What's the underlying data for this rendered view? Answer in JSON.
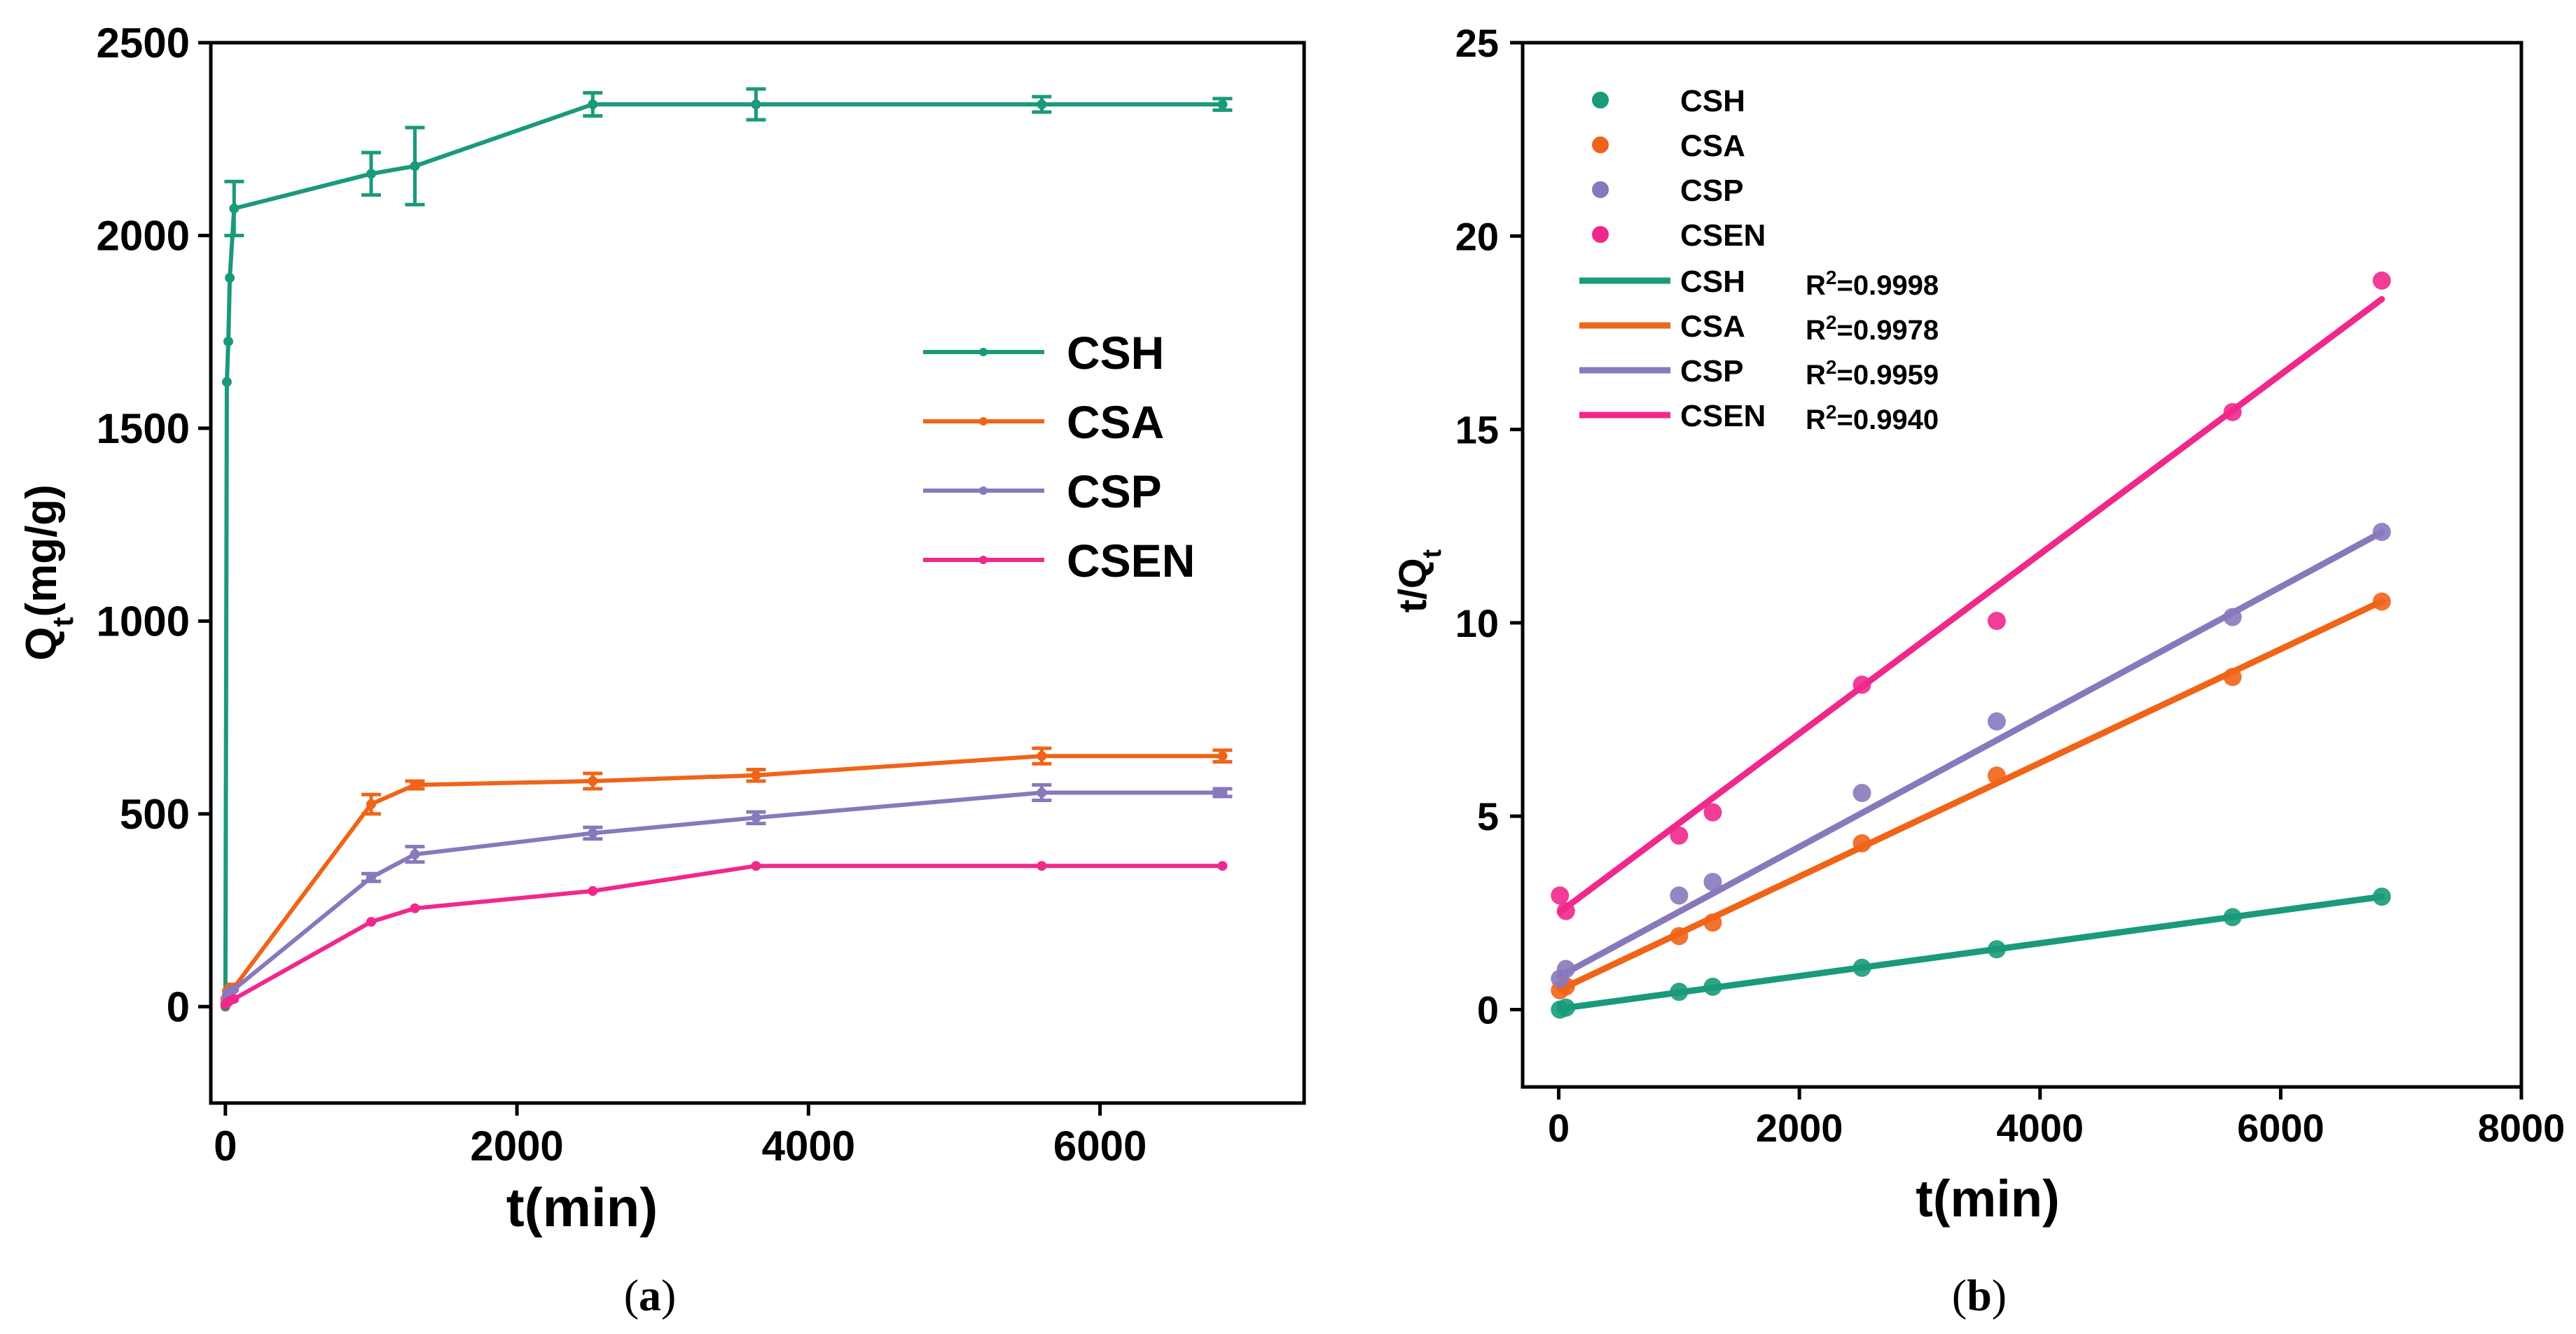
{
  "chart_data": [
    {
      "panel": "a",
      "type": "line",
      "caption_letter": "a",
      "xlabel": "t(min)",
      "ylabel_main": "Q",
      "ylabel_sub": "t",
      "ylabel_suffix": "(mg/g)",
      "xlim": [
        -100,
        7400
      ],
      "ylim": [
        -250,
        2500
      ],
      "xticks": [
        0,
        2000,
        4000,
        6000
      ],
      "yticks": [
        0,
        500,
        1000,
        1500,
        2000,
        2500
      ],
      "x": [
        0,
        10,
        20,
        30,
        60,
        1000,
        1300,
        2520,
        3640,
        5600,
        6840
      ],
      "series": [
        {
          "name": "CSH",
          "color": "#1a9a7a",
          "values": [
            0,
            1620,
            1725,
            1890,
            2070,
            2160,
            2180,
            2340,
            2340,
            2340,
            2340
          ],
          "errors": [
            0,
            0,
            0,
            0,
            70,
            55,
            100,
            30,
            40,
            20,
            15
          ]
        },
        {
          "name": "CSA",
          "color": "#f06418",
          "values": [
            20,
            40,
            45,
            50,
            50,
            525,
            575,
            585,
            600,
            650,
            650
          ],
          "errors": [
            0,
            0,
            0,
            0,
            0,
            25,
            10,
            20,
            15,
            20,
            15
          ]
        },
        {
          "name": "CSP",
          "color": "#8878bc",
          "values": [
            10,
            30,
            35,
            40,
            45,
            335,
            395,
            450,
            490,
            555,
            555
          ],
          "errors": [
            0,
            0,
            0,
            0,
            0,
            10,
            20,
            15,
            15,
            20,
            10
          ]
        },
        {
          "name": "CSEN",
          "color": "#f0288c",
          "values": [
            5,
            10,
            12,
            15,
            20,
            220,
            255,
            300,
            365,
            365,
            365
          ],
          "errors": [
            0,
            0,
            0,
            0,
            0,
            0,
            0,
            0,
            0,
            0,
            0
          ]
        }
      ],
      "legend": [
        "CSH",
        "CSA",
        "CSP",
        "CSEN"
      ],
      "legend_position": "center-right"
    },
    {
      "panel": "b",
      "type": "scatter",
      "caption_letter": "b",
      "xlabel": "t(min)",
      "ylabel_main": "t/Q",
      "ylabel_sub": "t",
      "xlim": [
        -300,
        8000
      ],
      "ylim": [
        -2,
        25
      ],
      "xticks": [
        0,
        2000,
        4000,
        6000,
        8000
      ],
      "yticks": [
        0,
        5,
        10,
        15,
        20,
        25
      ],
      "x": [
        10,
        60,
        1000,
        1280,
        2520,
        3640,
        5600,
        6840
      ],
      "series": [
        {
          "name": "CSH",
          "color": "#1a9a7a",
          "points": [
            0.0,
            0.05,
            0.46,
            0.59,
            1.08,
            1.56,
            2.39,
            2.92
          ],
          "fit": {
            "intercept": 0.02,
            "slope": 0.000424
          },
          "r2": "0.9998"
        },
        {
          "name": "CSA",
          "color": "#f06418",
          "points": [
            0.5,
            0.6,
            1.9,
            2.25,
            4.3,
            6.05,
            8.6,
            10.55
          ],
          "fit": {
            "intercept": 0.5,
            "slope": 0.00147
          },
          "r2": "0.9978"
        },
        {
          "name": "CSP",
          "color": "#8878bc",
          "points": [
            0.8,
            1.05,
            2.95,
            3.3,
            5.6,
            7.45,
            10.15,
            12.35
          ],
          "fit": {
            "intercept": 0.85,
            "slope": 0.00168
          },
          "r2": "0.9959"
        },
        {
          "name": "CSEN",
          "color": "#f0288c",
          "points": [
            2.95,
            2.55,
            4.5,
            5.1,
            8.4,
            10.05,
            15.45,
            18.85
          ],
          "fit": {
            "intercept": 2.5,
            "slope": 0.00232
          },
          "r2": "0.9940"
        }
      ],
      "legend_points": [
        "CSH",
        "CSA",
        "CSP",
        "CSEN"
      ],
      "legend_lines": [
        "CSH",
        "CSA",
        "CSP",
        "CSEN"
      ],
      "r2_label": "R",
      "r2_sup": "2",
      "r2_prefix": "=",
      "legend_position": "top-left"
    }
  ]
}
